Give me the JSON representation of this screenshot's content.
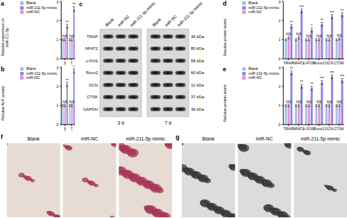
{
  "chart_data": [
    {
      "panel": "a",
      "type": "bar",
      "y_label": "Relative expression of miR-211-5p",
      "categories": [
        "3 d",
        "7 d"
      ],
      "ylim": [
        0,
        3
      ],
      "yticks": [
        0,
        1,
        2,
        3
      ],
      "legend": "upper left",
      "series": [
        {
          "name": "Blank",
          "color": "#9dc3e6",
          "values": [
            1,
            1
          ],
          "errors": [
            0.05,
            0.05
          ]
        },
        {
          "name": "miR-NC",
          "color": "#e58fd9",
          "values": [
            1,
            1
          ],
          "errors": [
            0.06,
            0.06
          ],
          "annotations": [
            "NS",
            "NS"
          ]
        },
        {
          "name": "miR-211-5p mimic",
          "color": "#8e86e0",
          "values": [
            1.7,
            2.6
          ],
          "errors": [
            0.1,
            0.12
          ],
          "annotations": [
            "**",
            "**"
          ]
        }
      ]
    },
    {
      "panel": "b",
      "type": "bar",
      "y_label": "Relative ALP activity",
      "categories": [
        "3 d",
        "7 d"
      ],
      "ylim": [
        0,
        3
      ],
      "yticks": [
        0,
        1,
        2,
        3
      ],
      "legend": "upper left",
      "series": [
        {
          "name": "Blank",
          "color": "#9dc3e6",
          "values": [
            1,
            1
          ],
          "errors": [
            0.05,
            0.05
          ]
        },
        {
          "name": "miR-NC",
          "color": "#e58fd9",
          "values": [
            1,
            1
          ],
          "errors": [
            0.06,
            0.06
          ],
          "annotations": [
            "NS",
            "NS"
          ]
        },
        {
          "name": "miR-211-5p mimic",
          "color": "#8e86e0",
          "values": [
            2.1,
            2.8
          ],
          "errors": [
            0.1,
            0.12
          ],
          "annotations": [
            "**",
            "**"
          ]
        }
      ]
    },
    {
      "panel": "d",
      "type": "bar",
      "y_label": "Relative protein levels",
      "categories": [
        "TRAP",
        "NFAT2",
        "c-FOS",
        "Runx2",
        "OCN",
        "CTSK"
      ],
      "ylim": [
        0,
        3
      ],
      "yticks": [
        0,
        1,
        2,
        3
      ],
      "legend": "upper left",
      "series": [
        {
          "name": "Blank",
          "color": "#9dc3e6",
          "values": [
            1,
            1,
            1,
            1,
            1,
            1
          ],
          "errors": [
            0.05,
            0.05,
            0.05,
            0.05,
            0.05,
            0.05
          ]
        },
        {
          "name": "miR-NC",
          "color": "#e58fd9",
          "values": [
            1.1,
            1.1,
            1,
            1,
            1,
            1.05
          ],
          "errors": [
            0.06,
            0.06,
            0.06,
            0.06,
            0.06,
            0.06
          ],
          "annotations": [
            "NS",
            "NS",
            "NS",
            "NS",
            "NS",
            "NS"
          ]
        },
        {
          "name": "miR-211-5p mimic",
          "color": "#8e86e0",
          "values": [
            1.7,
            2.5,
            1.5,
            1.8,
            2.2,
            2.3
          ],
          "errors": [
            0.1,
            0.1,
            0.1,
            0.1,
            0.1,
            0.1
          ],
          "annotations": [
            "**",
            "***",
            "*",
            "**",
            "***",
            "**"
          ]
        }
      ]
    },
    {
      "panel": "e",
      "type": "bar",
      "y_label": "Relative protein levels",
      "categories": [
        "TRAP",
        "NFAT2",
        "c-FOS",
        "Runx2",
        "OCN",
        "CTSK"
      ],
      "ylim": [
        0,
        3
      ],
      "yticks": [
        0,
        1,
        2,
        3
      ],
      "legend": "upper left",
      "series": [
        {
          "name": "Blank",
          "color": "#9dc3e6",
          "values": [
            1,
            1,
            1,
            1,
            1,
            1
          ],
          "errors": [
            0.05,
            0.05,
            0.05,
            0.05,
            0.05,
            0.05
          ]
        },
        {
          "name": "miR-NC",
          "color": "#e58fd9",
          "values": [
            1,
            1,
            1,
            1,
            1,
            1
          ],
          "errors": [
            0.06,
            0.06,
            0.06,
            0.06,
            0.06,
            0.06
          ],
          "annotations": [
            "NS",
            "NS",
            "NS",
            "NS",
            "NS",
            "NS"
          ]
        },
        {
          "name": "miR-211-5p mimic",
          "color": "#8e86e0",
          "values": [
            2.7,
            2.0,
            1.9,
            2.2,
            2.5,
            2.3
          ],
          "errors": [
            0.1,
            0.1,
            0.1,
            0.1,
            0.1,
            0.1
          ],
          "annotations": [
            "**",
            "**",
            "**",
            "***",
            "***",
            "***"
          ]
        }
      ]
    }
  ],
  "blot": {
    "panel": "c",
    "lanes": [
      "Blank",
      "miR-NC",
      "miR-211-5p mimic"
    ],
    "timepoints": [
      "3 d",
      "7 d"
    ],
    "rows": [
      {
        "protein": "TRAP",
        "size": "36 kDa"
      },
      {
        "protein": "NFAT2",
        "size": "80 kDa"
      },
      {
        "protein": "c-FOS",
        "size": "58 kDa"
      },
      {
        "protein": "Runx2",
        "size": "60 kDa"
      },
      {
        "protein": "OCN",
        "size": "11 kDa"
      },
      {
        "protein": "CTSK",
        "size": "37 kDa"
      },
      {
        "protein": "GAPDH",
        "size": "36 kDa"
      }
    ]
  },
  "images": [
    {
      "panel": "f",
      "labels": [
        "Blank",
        "miR-NC",
        "miR-211-5p mimic"
      ]
    },
    {
      "panel": "g",
      "labels": [
        "Blank",
        "miR-NC",
        "miR-211-5p mimic"
      ]
    }
  ]
}
